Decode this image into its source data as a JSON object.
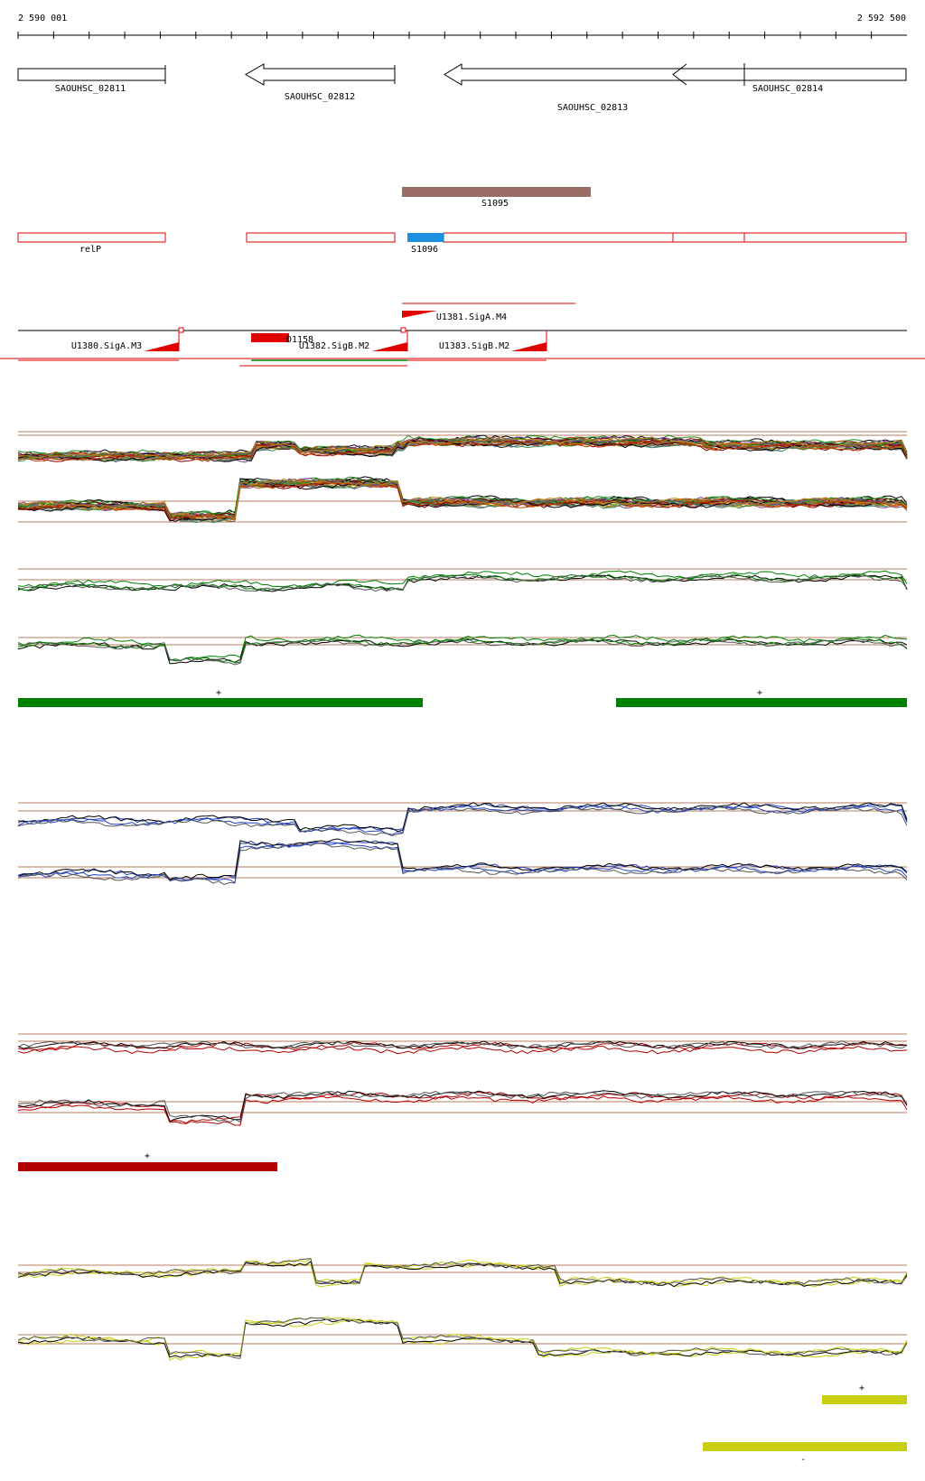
{
  "ruler": {
    "start_label": "2 590 001",
    "end_label": "2 592 500",
    "start_pos": 2590001,
    "end_pos": 2592500
  },
  "genes": [
    {
      "name": "SAOUHSC_02811",
      "start": 2590001,
      "end": 2590413,
      "strand": "+"
    },
    {
      "name": "SAOUHSC_02812",
      "start": 2590640,
      "end": 2590993,
      "strand": "-"
    },
    {
      "name": "SAOUHSC_02813",
      "start": 2591191,
      "end": 2592500,
      "strand": "-"
    },
    {
      "name": "SAOUHSC_02814",
      "start": 2592045,
      "end": 2592500,
      "strand": "+"
    }
  ],
  "features": {
    "S1095": {
      "label": "S1095",
      "start": 2591134,
      "end": 2591666,
      "color": "#9b6b66"
    },
    "S1096": {
      "label": "S1096",
      "start": 2591039,
      "end": 2591144,
      "color": "#1e90e0"
    },
    "relP": {
      "label": "relP"
    },
    "D1158": {
      "label": "D1158"
    }
  },
  "promoters": [
    {
      "label": "U1380.SigA.M3"
    },
    {
      "label": "U1381.SigA.M4"
    },
    {
      "label": "U1382.SigB.M2"
    },
    {
      "label": "U1383.SigB.M2"
    }
  ],
  "conditions": [
    {
      "id": "multi",
      "colors": [
        "#000000",
        "#8b0000",
        "#228b22",
        "#c04000",
        "#7a4b8c",
        "#b8860b",
        "#2e8b57",
        "#808080"
      ]
    },
    {
      "id": "green",
      "color": "#008000",
      "segments": [
        {
          "strand": "+",
          "start": 2590001,
          "end": 2591134
        },
        {
          "strand": "+",
          "start": 2591681,
          "end": 2592500
        }
      ]
    },
    {
      "id": "blue",
      "color": "#1f3fbf",
      "segments": []
    },
    {
      "id": "red",
      "color": "#b30000",
      "segments": [
        {
          "strand": "+",
          "start": 2590001,
          "end": 2590728
        }
      ]
    },
    {
      "id": "yellow",
      "color": "#c8cf10",
      "segments": [
        {
          "strand": "+",
          "start": 2592331,
          "end": 2592500
        },
        {
          "strand": "-",
          "start": 2591968,
          "end": 2592500
        }
      ]
    }
  ]
}
